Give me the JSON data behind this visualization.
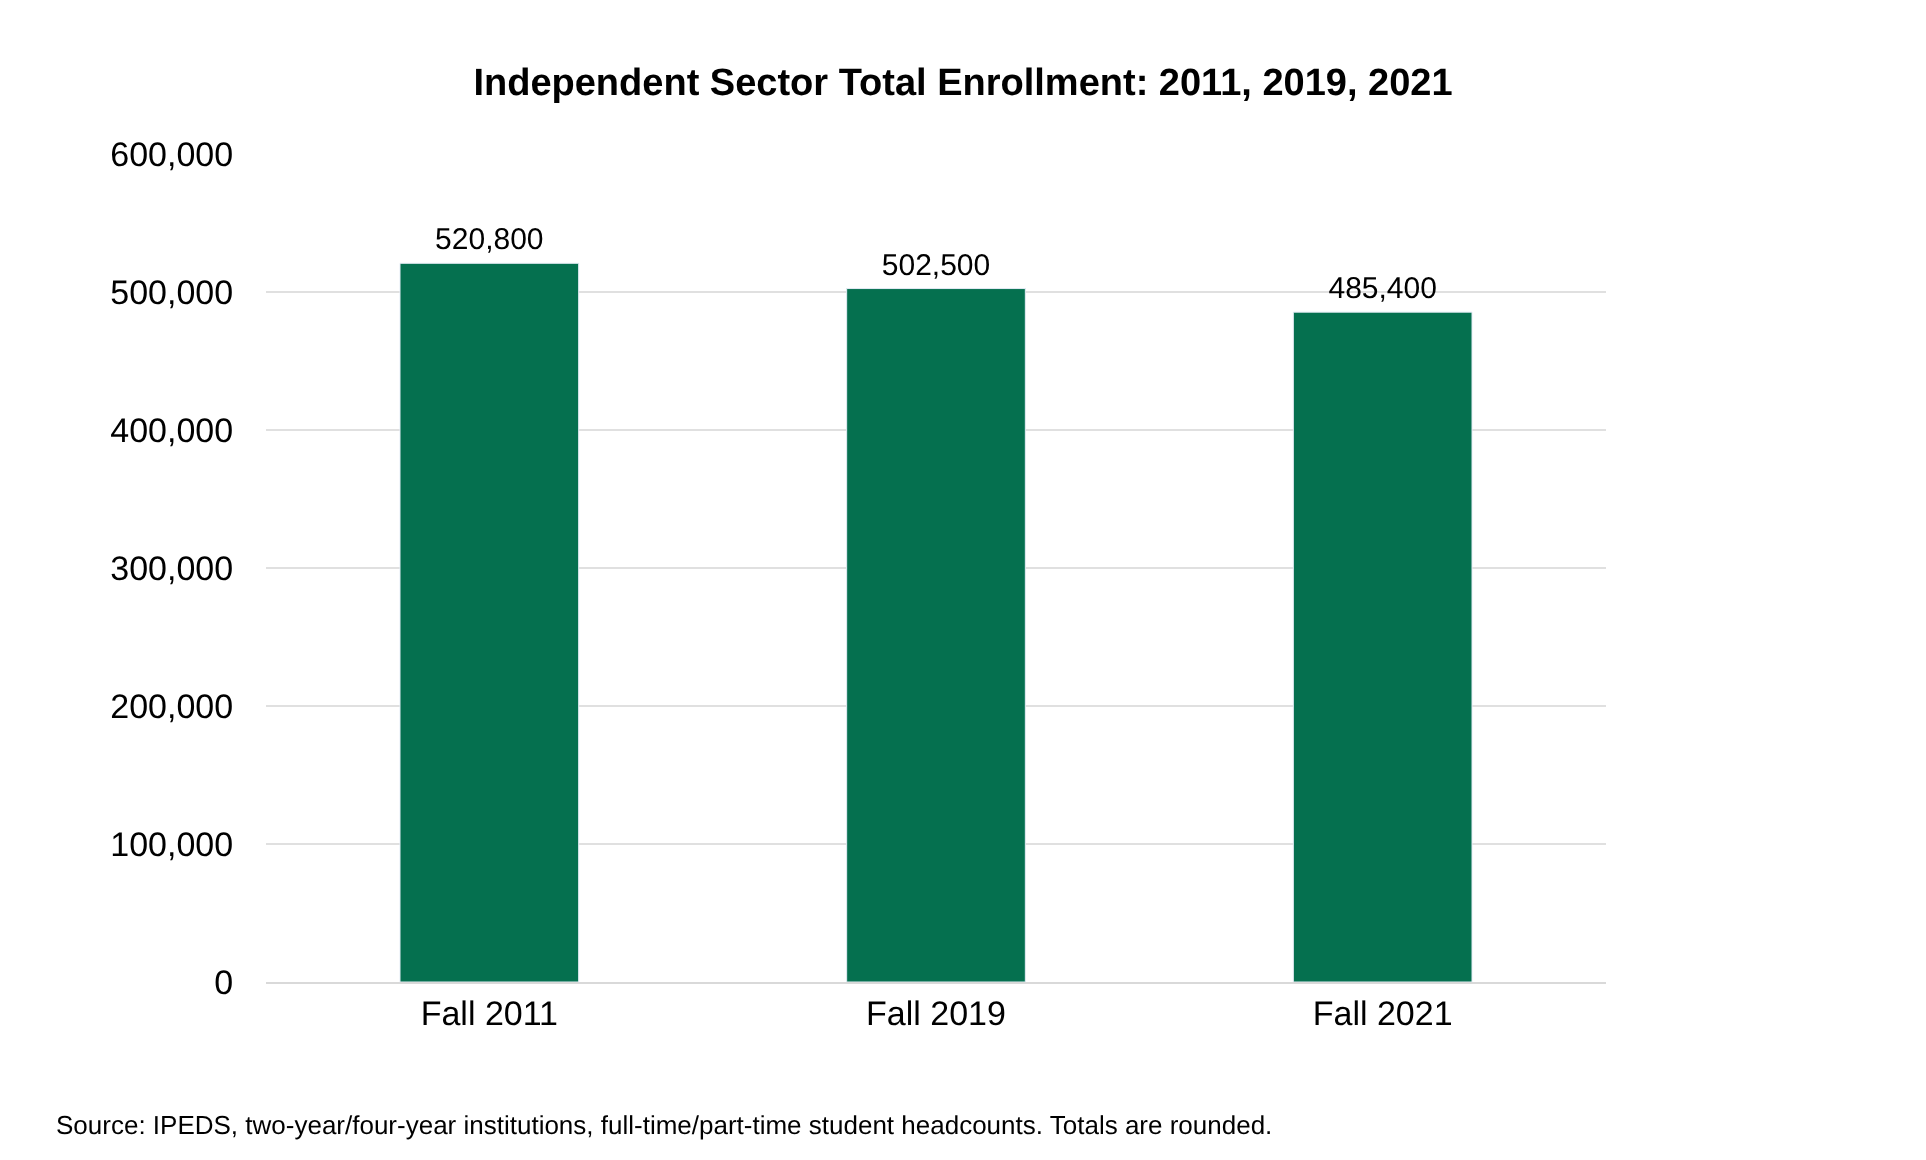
{
  "chart_data": {
    "type": "bar",
    "title": "Independent Sector Total Enrollment: 2011, 2019, 2021",
    "categories": [
      "Fall 2011",
      "Fall 2019",
      "Fall 2021"
    ],
    "values": [
      520800,
      502500,
      485400
    ],
    "color": "#05704f",
    "value_labels": [
      "520,800",
      "502,500",
      "485,400"
    ],
    "ylim": [
      0,
      600000
    ],
    "yticks": [
      {
        "value": 0,
        "label": "0"
      },
      {
        "value": 100000,
        "label": "100,000"
      },
      {
        "value": 200000,
        "label": "200,000"
      },
      {
        "value": 300000,
        "label": "300,000"
      },
      {
        "value": 400000,
        "label": "400,000"
      },
      {
        "value": 500000,
        "label": "500,000"
      },
      {
        "value": 600000,
        "label": "600,000"
      }
    ],
    "grid": "y",
    "annotations": [
      "Source: IPEDS, two-year/four-year institutions, full-time/part-time student headcounts. Totals are rounded."
    ]
  }
}
